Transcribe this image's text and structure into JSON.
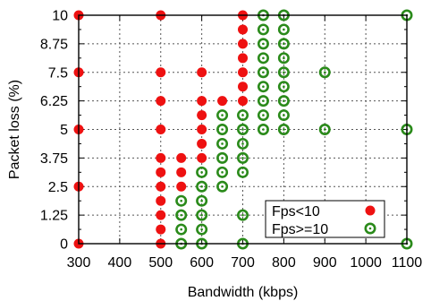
{
  "chart_data": {
    "type": "scatter",
    "xlabel": "Bandwidth (kbps)",
    "ylabel": "Packet loss (%)",
    "xlim": [
      300,
      1100
    ],
    "ylim": [
      0,
      10
    ],
    "xticks": [
      300,
      400,
      500,
      600,
      700,
      800,
      900,
      1000,
      1100
    ],
    "xtick_labels": [
      "300",
      "400",
      "500",
      "600",
      "700",
      "800",
      "900",
      "1000",
      "1100"
    ],
    "yticks": [
      0,
      0.625,
      1.25,
      1.875,
      2.5,
      3.125,
      3.75,
      4.375,
      5,
      5.625,
      6.25,
      6.875,
      7.5,
      8.125,
      8.75,
      9.375,
      10
    ],
    "ytick_labels": [
      "0",
      "",
      "1.25",
      "",
      "2.5",
      "",
      "3.75",
      "",
      "5",
      "",
      "6.25",
      "",
      "7.5",
      "",
      "8.75",
      "",
      "10"
    ],
    "grid": true,
    "legend_position": "bottom-right",
    "colors": {
      "fps_low": "#ee1111",
      "fps_high": "#2a8a1a"
    },
    "series": [
      {
        "name": "Fps<10",
        "marker": "filled-circle",
        "points": [
          [
            300,
            0
          ],
          [
            300,
            2.5
          ],
          [
            300,
            5
          ],
          [
            300,
            7.5
          ],
          [
            300,
            10
          ],
          [
            500,
            0
          ],
          [
            500,
            0.625
          ],
          [
            500,
            1.25
          ],
          [
            500,
            1.875
          ],
          [
            500,
            2.5
          ],
          [
            500,
            3.125
          ],
          [
            500,
            3.75
          ],
          [
            500,
            5
          ],
          [
            500,
            6.25
          ],
          [
            500,
            7.5
          ],
          [
            500,
            10
          ],
          [
            550,
            2.5
          ],
          [
            550,
            3.125
          ],
          [
            550,
            3.75
          ],
          [
            600,
            3.75
          ],
          [
            600,
            4.375
          ],
          [
            600,
            5
          ],
          [
            600,
            5.625
          ],
          [
            600,
            6.25
          ],
          [
            600,
            7.5
          ],
          [
            650,
            6.25
          ],
          [
            700,
            6.25
          ],
          [
            700,
            6.875
          ],
          [
            700,
            7.5
          ],
          [
            700,
            8.125
          ],
          [
            700,
            8.75
          ],
          [
            700,
            9.375
          ],
          [
            700,
            10
          ]
        ]
      },
      {
        "name": "Fps>=10",
        "marker": "open-circle-dot",
        "points": [
          [
            550,
            0
          ],
          [
            550,
            0.625
          ],
          [
            550,
            1.25
          ],
          [
            550,
            1.875
          ],
          [
            600,
            0
          ],
          [
            600,
            0.625
          ],
          [
            600,
            1.25
          ],
          [
            600,
            1.875
          ],
          [
            600,
            2.5
          ],
          [
            600,
            3.125
          ],
          [
            650,
            2.5
          ],
          [
            650,
            3.125
          ],
          [
            650,
            3.75
          ],
          [
            650,
            4.375
          ],
          [
            650,
            5
          ],
          [
            650,
            5.625
          ],
          [
            700,
            0
          ],
          [
            700,
            1.25
          ],
          [
            700,
            3.125
          ],
          [
            700,
            3.75
          ],
          [
            700,
            4.375
          ],
          [
            700,
            5
          ],
          [
            700,
            5.625
          ],
          [
            750,
            5
          ],
          [
            750,
            5.625
          ],
          [
            750,
            6.25
          ],
          [
            750,
            6.875
          ],
          [
            750,
            7.5
          ],
          [
            750,
            8.125
          ],
          [
            750,
            8.75
          ],
          [
            750,
            9.375
          ],
          [
            750,
            10
          ],
          [
            800,
            5
          ],
          [
            800,
            5.625
          ],
          [
            800,
            6.25
          ],
          [
            800,
            6.875
          ],
          [
            800,
            7.5
          ],
          [
            800,
            8.125
          ],
          [
            800,
            8.75
          ],
          [
            800,
            9.375
          ],
          [
            800,
            10
          ],
          [
            900,
            5
          ],
          [
            900,
            7.5
          ],
          [
            1100,
            0
          ],
          [
            1100,
            5
          ],
          [
            1100,
            10
          ]
        ]
      }
    ]
  }
}
